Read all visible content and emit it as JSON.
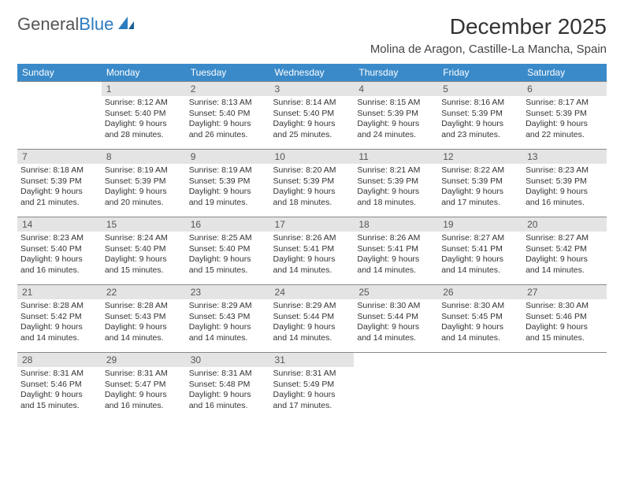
{
  "logo": {
    "text_gray": "General",
    "text_blue": "Blue"
  },
  "title": "December 2025",
  "location": "Molina de Aragon, Castille-La Mancha, Spain",
  "colors": {
    "header_bg": "#3a8ac9",
    "header_text": "#ffffff",
    "daynum_bg": "#e4e4e4",
    "row_border": "#888888",
    "logo_gray": "#555555",
    "logo_blue": "#2b7bbf"
  },
  "day_headers": [
    "Sunday",
    "Monday",
    "Tuesday",
    "Wednesday",
    "Thursday",
    "Friday",
    "Saturday"
  ],
  "weeks": [
    [
      {
        "n": "",
        "sr": "",
        "ss": "",
        "dl": ""
      },
      {
        "n": "1",
        "sr": "8:12 AM",
        "ss": "5:40 PM",
        "dl": "9 hours and 28 minutes."
      },
      {
        "n": "2",
        "sr": "8:13 AM",
        "ss": "5:40 PM",
        "dl": "9 hours and 26 minutes."
      },
      {
        "n": "3",
        "sr": "8:14 AM",
        "ss": "5:40 PM",
        "dl": "9 hours and 25 minutes."
      },
      {
        "n": "4",
        "sr": "8:15 AM",
        "ss": "5:39 PM",
        "dl": "9 hours and 24 minutes."
      },
      {
        "n": "5",
        "sr": "8:16 AM",
        "ss": "5:39 PM",
        "dl": "9 hours and 23 minutes."
      },
      {
        "n": "6",
        "sr": "8:17 AM",
        "ss": "5:39 PM",
        "dl": "9 hours and 22 minutes."
      }
    ],
    [
      {
        "n": "7",
        "sr": "8:18 AM",
        "ss": "5:39 PM",
        "dl": "9 hours and 21 minutes."
      },
      {
        "n": "8",
        "sr": "8:19 AM",
        "ss": "5:39 PM",
        "dl": "9 hours and 20 minutes."
      },
      {
        "n": "9",
        "sr": "8:19 AM",
        "ss": "5:39 PM",
        "dl": "9 hours and 19 minutes."
      },
      {
        "n": "10",
        "sr": "8:20 AM",
        "ss": "5:39 PM",
        "dl": "9 hours and 18 minutes."
      },
      {
        "n": "11",
        "sr": "8:21 AM",
        "ss": "5:39 PM",
        "dl": "9 hours and 18 minutes."
      },
      {
        "n": "12",
        "sr": "8:22 AM",
        "ss": "5:39 PM",
        "dl": "9 hours and 17 minutes."
      },
      {
        "n": "13",
        "sr": "8:23 AM",
        "ss": "5:39 PM",
        "dl": "9 hours and 16 minutes."
      }
    ],
    [
      {
        "n": "14",
        "sr": "8:23 AM",
        "ss": "5:40 PM",
        "dl": "9 hours and 16 minutes."
      },
      {
        "n": "15",
        "sr": "8:24 AM",
        "ss": "5:40 PM",
        "dl": "9 hours and 15 minutes."
      },
      {
        "n": "16",
        "sr": "8:25 AM",
        "ss": "5:40 PM",
        "dl": "9 hours and 15 minutes."
      },
      {
        "n": "17",
        "sr": "8:26 AM",
        "ss": "5:41 PM",
        "dl": "9 hours and 14 minutes."
      },
      {
        "n": "18",
        "sr": "8:26 AM",
        "ss": "5:41 PM",
        "dl": "9 hours and 14 minutes."
      },
      {
        "n": "19",
        "sr": "8:27 AM",
        "ss": "5:41 PM",
        "dl": "9 hours and 14 minutes."
      },
      {
        "n": "20",
        "sr": "8:27 AM",
        "ss": "5:42 PM",
        "dl": "9 hours and 14 minutes."
      }
    ],
    [
      {
        "n": "21",
        "sr": "8:28 AM",
        "ss": "5:42 PM",
        "dl": "9 hours and 14 minutes."
      },
      {
        "n": "22",
        "sr": "8:28 AM",
        "ss": "5:43 PM",
        "dl": "9 hours and 14 minutes."
      },
      {
        "n": "23",
        "sr": "8:29 AM",
        "ss": "5:43 PM",
        "dl": "9 hours and 14 minutes."
      },
      {
        "n": "24",
        "sr": "8:29 AM",
        "ss": "5:44 PM",
        "dl": "9 hours and 14 minutes."
      },
      {
        "n": "25",
        "sr": "8:30 AM",
        "ss": "5:44 PM",
        "dl": "9 hours and 14 minutes."
      },
      {
        "n": "26",
        "sr": "8:30 AM",
        "ss": "5:45 PM",
        "dl": "9 hours and 14 minutes."
      },
      {
        "n": "27",
        "sr": "8:30 AM",
        "ss": "5:46 PM",
        "dl": "9 hours and 15 minutes."
      }
    ],
    [
      {
        "n": "28",
        "sr": "8:31 AM",
        "ss": "5:46 PM",
        "dl": "9 hours and 15 minutes."
      },
      {
        "n": "29",
        "sr": "8:31 AM",
        "ss": "5:47 PM",
        "dl": "9 hours and 16 minutes."
      },
      {
        "n": "30",
        "sr": "8:31 AM",
        "ss": "5:48 PM",
        "dl": "9 hours and 16 minutes."
      },
      {
        "n": "31",
        "sr": "8:31 AM",
        "ss": "5:49 PM",
        "dl": "9 hours and 17 minutes."
      },
      {
        "n": "",
        "sr": "",
        "ss": "",
        "dl": ""
      },
      {
        "n": "",
        "sr": "",
        "ss": "",
        "dl": ""
      },
      {
        "n": "",
        "sr": "",
        "ss": "",
        "dl": ""
      }
    ]
  ],
  "labels": {
    "sunrise": "Sunrise: ",
    "sunset": "Sunset: ",
    "daylight": "Daylight: "
  }
}
